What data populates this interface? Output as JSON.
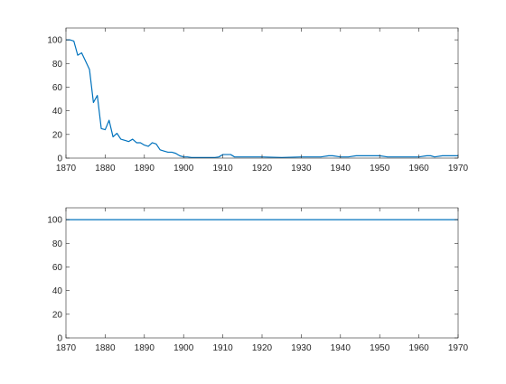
{
  "chart_data": [
    {
      "type": "line",
      "title": "",
      "xlabel": "",
      "ylabel": "",
      "xlim": [
        1870,
        1970
      ],
      "ylim": [
        0,
        110
      ],
      "x_ticks": [
        1870,
        1880,
        1890,
        1900,
        1910,
        1920,
        1930,
        1940,
        1950,
        1960,
        1970
      ],
      "y_ticks": [
        0,
        20,
        40,
        60,
        80,
        100
      ],
      "x_tick_labels": [
        "1870",
        "1880",
        "1890",
        "1900",
        "1910",
        "1920",
        "1930",
        "1940",
        "1950",
        "1960",
        "1970"
      ],
      "y_tick_labels": [
        "0",
        "20",
        "40",
        "60",
        "80",
        "100"
      ],
      "grid": false,
      "box": true,
      "series": [
        {
          "name": "series-1",
          "color": "#0072BD",
          "x": [
            1870,
            1871,
            1872,
            1873,
            1874,
            1875,
            1876,
            1877,
            1878,
            1879,
            1880,
            1881,
            1882,
            1883,
            1884,
            1885,
            1886,
            1887,
            1888,
            1889,
            1890,
            1891,
            1892,
            1893,
            1894,
            1895,
            1896,
            1897,
            1898,
            1899,
            1900,
            1901,
            1902,
            1903,
            1904,
            1905,
            1906,
            1907,
            1908,
            1909,
            1910,
            1911,
            1912,
            1913,
            1914,
            1915,
            1920,
            1925,
            1930,
            1935,
            1937,
            1938,
            1940,
            1942,
            1944,
            1946,
            1948,
            1950,
            1952,
            1954,
            1956,
            1958,
            1960,
            1962,
            1963,
            1964,
            1966,
            1968,
            1970
          ],
          "values": [
            100,
            100,
            99,
            87,
            89,
            82,
            75,
            47,
            53,
            25,
            24,
            32,
            18,
            21,
            16,
            15,
            14,
            16,
            13,
            13,
            11,
            10,
            13,
            12,
            7,
            6,
            5,
            5,
            4,
            2,
            1,
            1,
            0.5,
            0.5,
            0.5,
            0.5,
            0.5,
            0.5,
            0.5,
            1,
            3,
            3,
            3,
            1,
            1,
            1,
            1,
            0.5,
            1,
            1,
            2,
            2,
            1,
            1,
            2,
            2,
            2,
            2,
            1,
            1,
            1,
            1,
            1,
            2,
            2,
            1,
            2,
            2,
            2
          ]
        }
      ]
    },
    {
      "type": "line",
      "title": "",
      "xlabel": "",
      "ylabel": "",
      "xlim": [
        1870,
        1970
      ],
      "ylim": [
        0,
        110
      ],
      "x_ticks": [
        1870,
        1880,
        1890,
        1900,
        1910,
        1920,
        1930,
        1940,
        1950,
        1960,
        1970
      ],
      "y_ticks": [
        0,
        20,
        40,
        60,
        80,
        100
      ],
      "x_tick_labels": [
        "1870",
        "1880",
        "1890",
        "1900",
        "1910",
        "1920",
        "1930",
        "1940",
        "1950",
        "1960",
        "1970"
      ],
      "y_tick_labels": [
        "0",
        "20",
        "40",
        "60",
        "80",
        "100"
      ],
      "grid": false,
      "box": true,
      "series": [
        {
          "name": "series-1",
          "color": "#0072BD",
          "x": [
            1870,
            1970
          ],
          "values": [
            100,
            100
          ]
        }
      ]
    }
  ]
}
